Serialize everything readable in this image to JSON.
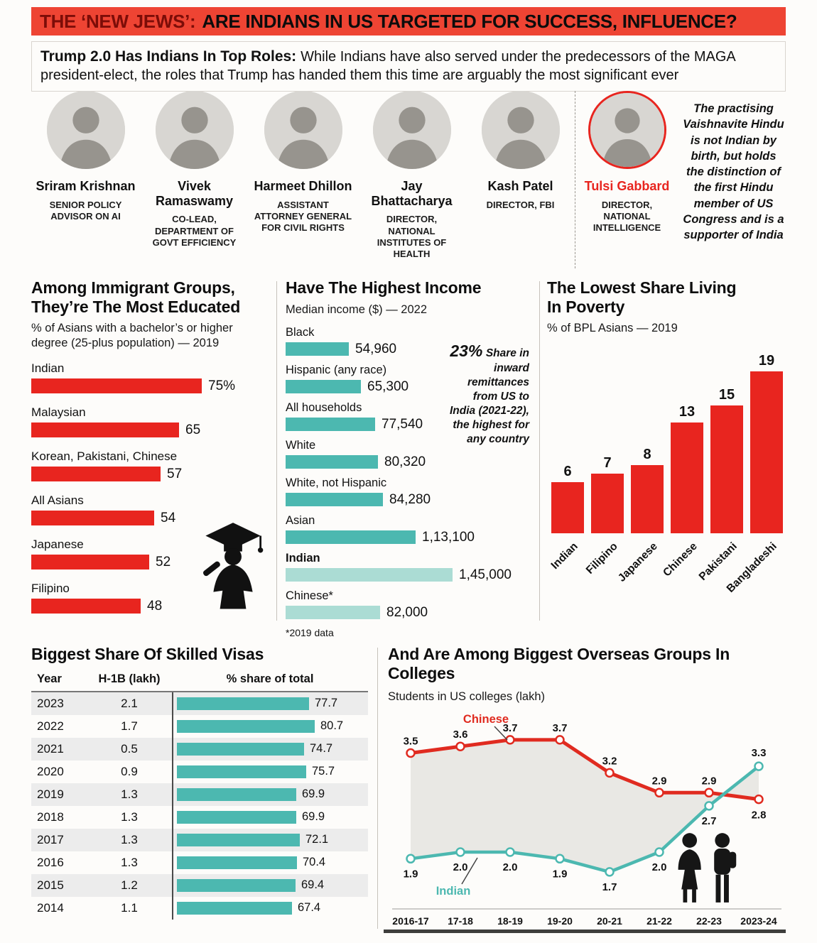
{
  "header": {
    "highlight": "THE ‘NEW JEWS’:",
    "rest": "ARE INDIANS IN US TARGETED FOR SUCCESS, INFLUENCE?"
  },
  "intro": {
    "lead": "Trump 2.0 Has Indians In Top Roles:",
    "body": "While Indians have also served under the predecessors of the MAGA president-elect, the roles that Trump has handed them this time are arguably the most significant ever"
  },
  "people": [
    {
      "name": "Sriram Krishnan",
      "role": "SENIOR POLICY ADVISOR ON AI"
    },
    {
      "name": "Vivek Ramaswamy",
      "role": "CO-LEAD, DEPARTMENT OF GOVT EFFICIENCY"
    },
    {
      "name": "Harmeet Dhillon",
      "role": "ASSISTANT ATTORNEY GENERAL FOR CIVIL RIGHTS"
    },
    {
      "name": "Jay Bhattacharya",
      "role": "DIRECTOR, NATIONAL INSTITUTES OF HEALTH"
    },
    {
      "name": "Kash Patel",
      "role": "DIRECTOR, FBI"
    },
    {
      "name": "Tulsi Gabbard",
      "role": "DIRECTOR, NATIONAL INTELLIGENCE",
      "highlight": true
    }
  ],
  "gabbard_note": "The practising Vaishnavite Hindu is not Indian by birth, but holds the distinction of the first Hindu member of US Congress and is a supporter of India",
  "colors": {
    "red": "#e8251f",
    "teal": "#4cb8b0",
    "teal_light": "#abdcd4",
    "header_bg": "#ee4433",
    "dark_red": "#7c0d08"
  },
  "chart_data": [
    {
      "id": "education",
      "type": "bar",
      "orientation": "horizontal",
      "title_lines": [
        "Among Immigrant Groups,",
        "They’re The Most Educated"
      ],
      "subtitle": "% of Asians with a bachelor’s or higher degree (25-plus population) — 2019",
      "categories": [
        "Indian",
        "Malaysian",
        "Korean, Pakistani, Chinese",
        "All Asians",
        "Japanese",
        "Filipino"
      ],
      "values": [
        75,
        65,
        57,
        54,
        52,
        48
      ],
      "value_labels": [
        "75%",
        "65",
        "57",
        "54",
        "52",
        "48"
      ],
      "xlim": [
        0,
        100
      ],
      "bar_color": "#e8251f"
    },
    {
      "id": "income",
      "type": "bar",
      "orientation": "horizontal",
      "title_lines": [
        "Have The Highest Income"
      ],
      "subtitle": "Median income ($) — 2022",
      "categories": [
        "Black",
        "Hispanic (any race)",
        "All households",
        "White",
        "White, not Hispanic",
        "Asian",
        "Indian",
        "Chinese*"
      ],
      "values": [
        54960,
        65300,
        77540,
        80320,
        84280,
        113100,
        145000,
        82000
      ],
      "value_labels": [
        "54,960",
        "65,300",
        "77,540",
        "80,320",
        "84,280",
        "1,13,100",
        "1,45,000",
        "82,000"
      ],
      "bold_categories": [
        "Indian"
      ],
      "light_categories": [
        "Indian",
        "Chinese*"
      ],
      "bar_color": "#4cb8b0",
      "light_color": "#abdcd4",
      "footnote": "*2019 data",
      "callout": {
        "stat": "23%",
        "text": "Share in inward remittances from US to India (2021-22), the highest for any country"
      }
    },
    {
      "id": "poverty",
      "type": "bar",
      "orientation": "vertical",
      "title_lines": [
        "The Lowest Share Living",
        "In Poverty"
      ],
      "subtitle": "% of BPL Asians — 2019",
      "categories": [
        "Indian",
        "Filipino",
        "Japanese",
        "Chinese",
        "Pakistani",
        "Bangladeshi"
      ],
      "values": [
        6,
        7,
        8,
        13,
        15,
        19
      ],
      "bar_color": "#e8251f"
    },
    {
      "id": "visas",
      "type": "table",
      "title_lines": [
        "Biggest Share Of Skilled Visas"
      ],
      "columns": [
        "Year",
        "H-1B (lakh)",
        "% share of total"
      ],
      "rows": [
        [
          "2023",
          "2.1",
          77.7
        ],
        [
          "2022",
          "1.7",
          80.7
        ],
        [
          "2021",
          "0.5",
          74.7
        ],
        [
          "2020",
          "0.9",
          75.7
        ],
        [
          "2019",
          "1.3",
          69.9
        ],
        [
          "2018",
          "1.3",
          69.9
        ],
        [
          "2017",
          "1.3",
          72.1
        ],
        [
          "2016",
          "1.3",
          70.4
        ],
        [
          "2015",
          "1.2",
          69.4
        ],
        [
          "2014",
          "1.1",
          67.4
        ]
      ],
      "bar_color": "#4cb8b0"
    },
    {
      "id": "colleges",
      "type": "line",
      "title_lines": [
        "And Are Among Biggest Overseas Groups In Colleges"
      ],
      "subtitle": "Students in US colleges (lakh)",
      "x": [
        "2016-17",
        "17-18",
        "18-19",
        "19-20",
        "20-21",
        "21-22",
        "22-23",
        "2023-24"
      ],
      "series": [
        {
          "name": "Chinese",
          "color": "#e02b20",
          "values": [
            3.5,
            3.6,
            3.7,
            3.7,
            3.2,
            2.9,
            2.9,
            2.8
          ]
        },
        {
          "name": "Indian",
          "color": "#4cb8b0",
          "values": [
            1.9,
            2.0,
            2.0,
            1.9,
            1.7,
            2.0,
            2.7,
            3.3
          ]
        }
      ],
      "ylim": [
        1.4,
        4.0
      ],
      "legend_position": "inline"
    }
  ]
}
